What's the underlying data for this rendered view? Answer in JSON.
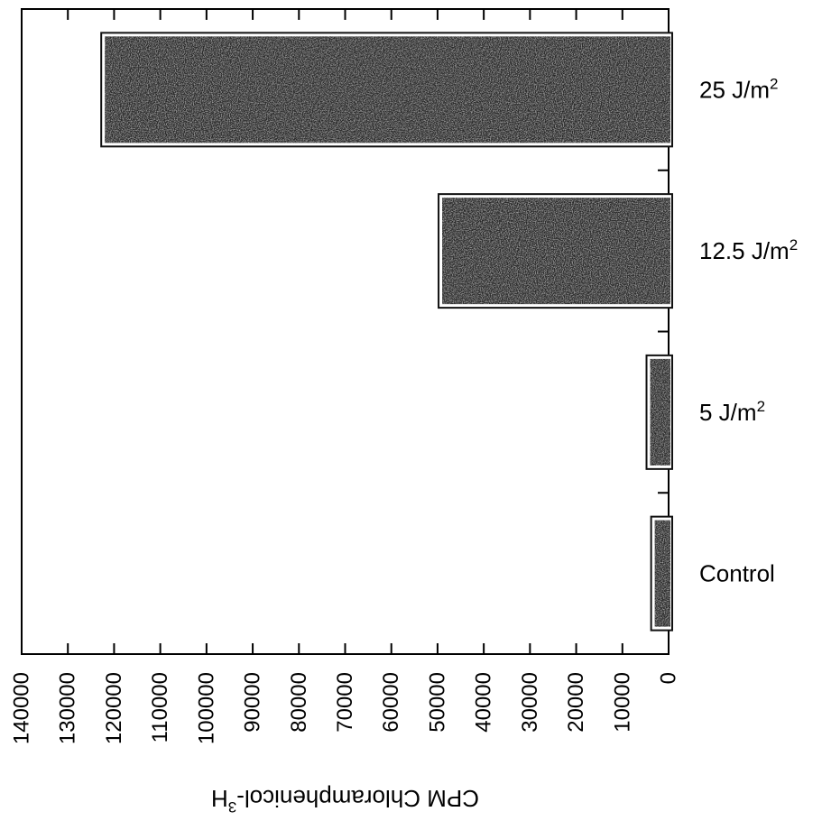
{
  "chart_data": {
    "type": "bar",
    "orientation": "horizontal",
    "value_axis_direction": "reversed",
    "categories": [
      {
        "base": "25 J/m",
        "sup": "2"
      },
      {
        "base": "12.5 J/m",
        "sup": "2"
      },
      {
        "base": "5 J/m",
        "sup": "2"
      },
      {
        "base": "Control",
        "sup": ""
      }
    ],
    "values": [
      122000,
      49000,
      4000,
      3000
    ],
    "xlim": [
      0,
      140000
    ],
    "xticks": [
      "0",
      "10000",
      "20000",
      "30000",
      "40000",
      "50000",
      "60000",
      "70000",
      "80000",
      "90000",
      "100000",
      "110000",
      "120000",
      "130000",
      "140000"
    ],
    "xlabel": {
      "base": "CPM Chloramphenicol-",
      "sup": "3",
      "tail": "H"
    },
    "ylabel": "",
    "title": "",
    "grid": false,
    "legend": "none",
    "bar_color": "#2b2b2b"
  }
}
